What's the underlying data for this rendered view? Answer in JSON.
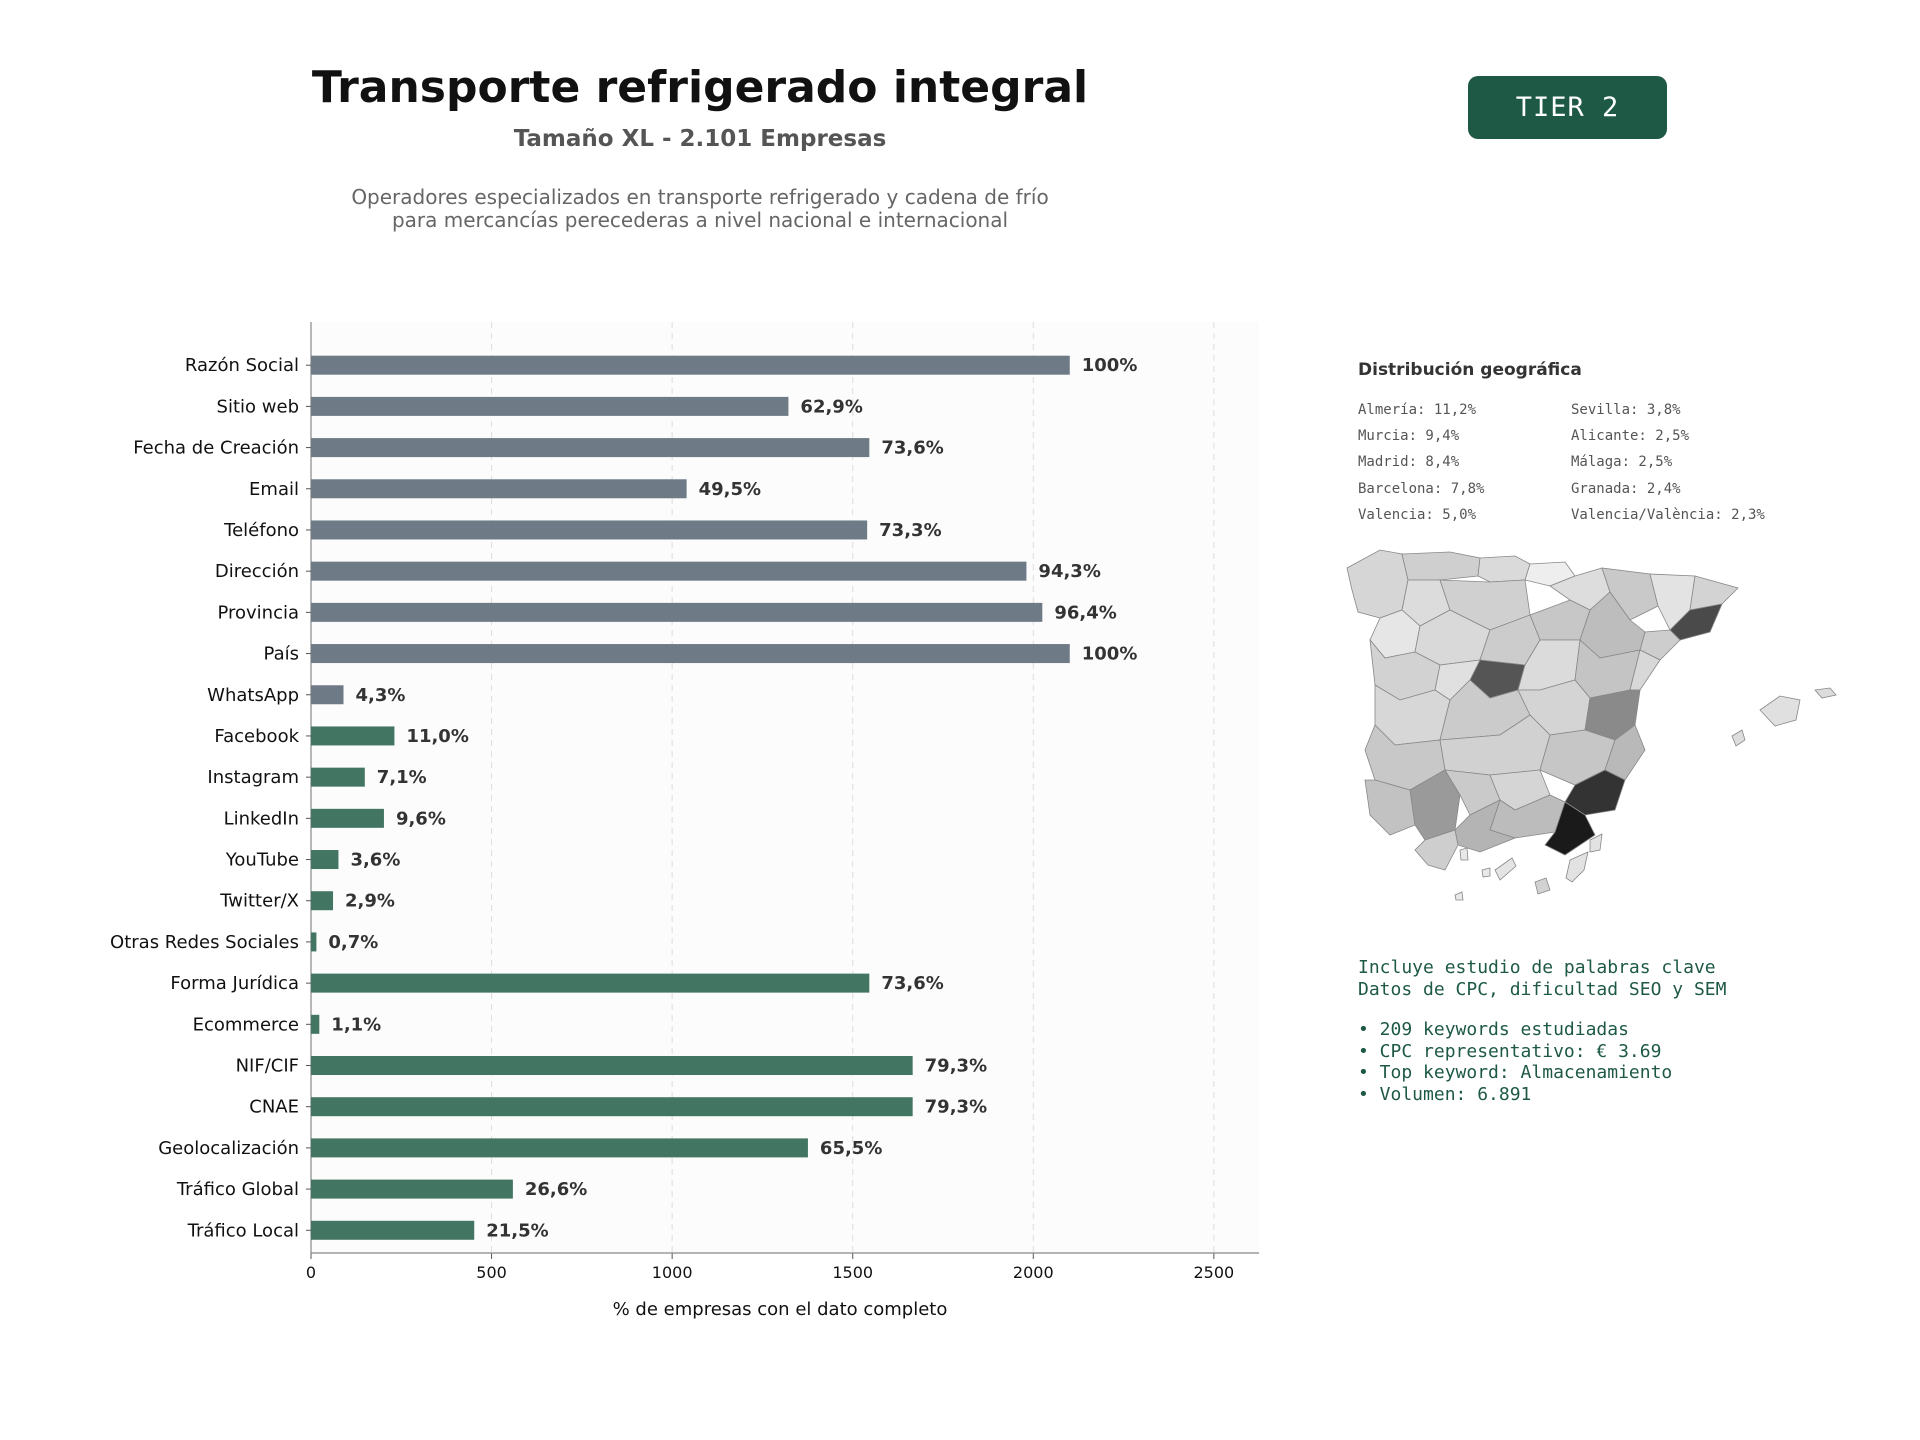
{
  "header": {
    "title": "Transporte refrigerado integral",
    "subtitle": "Tamaño XL - 2.101 Empresas",
    "description_line1": "Operadores especializados en transporte refrigerado y cadena de frío",
    "description_line2": "para mercancías perecederas a nivel nacional e internacional",
    "tier_badge": "TIER 2"
  },
  "colors": {
    "gray_bar": "#6e7a85",
    "green_bar": "#437563",
    "badge": "#1e5945",
    "keyword_text": "#1e5945"
  },
  "chart_data": {
    "type": "bar",
    "orientation": "horizontal",
    "categories": [
      "Razón Social",
      "Sitio web",
      "Fecha de Creación",
      "Email",
      "Teléfono",
      "Dirección",
      "Provincia",
      "País",
      "WhatsApp",
      "Facebook",
      "Instagram",
      "LinkedIn",
      "YouTube",
      "Twitter/X",
      "Otras Redes Sociales",
      "Forma Jurídica",
      "Ecommerce",
      "NIF/CIF",
      "CNAE",
      "Geolocalización",
      "Tráfico Global",
      "Tráfico Local"
    ],
    "values": [
      2101,
      1322,
      1546,
      1040,
      1540,
      1981,
      2025,
      2101,
      90,
      231,
      149,
      202,
      76,
      61,
      15,
      1546,
      23,
      1666,
      1666,
      1376,
      559,
      452
    ],
    "labels": [
      "100%",
      "62,9%",
      "73,6%",
      "49,5%",
      "73,3%",
      "94,3%",
      "96,4%",
      "100%",
      "4,3%",
      "11,0%",
      "7,1%",
      "9,6%",
      "3,6%",
      "2,9%",
      "0,7%",
      "73,6%",
      "1,1%",
      "79,3%",
      "79,3%",
      "65,5%",
      "26,6%",
      "21,5%"
    ],
    "bar_colors": [
      "gray",
      "gray",
      "gray",
      "gray",
      "gray",
      "gray",
      "gray",
      "gray",
      "gray",
      "green",
      "green",
      "green",
      "green",
      "green",
      "green",
      "green",
      "green",
      "green",
      "green",
      "green",
      "green",
      "green"
    ],
    "xlabel": "% de empresas con el dato completo",
    "xlim": [
      0,
      2625
    ],
    "xticks": [
      0,
      500,
      1000,
      1500,
      2000,
      2500
    ],
    "grid": "vertical dashed"
  },
  "geo": {
    "title": "Distribución geográfica",
    "col1": [
      "Almería: 11,2%",
      "Murcia: 9,4%",
      "Madrid: 8,4%",
      "Barcelona: 7,8%",
      "Valencia: 5,0%"
    ],
    "col2": [
      "Sevilla: 3,8%",
      "Alicante: 2,5%",
      "Málaga: 2,5%",
      "Granada: 2,4%",
      "Valencia/València: 2,3%"
    ]
  },
  "keywords": {
    "line1": "Incluye estudio de palabras clave",
    "line2": "Datos de CPC, dificultad SEO y SEM",
    "bullets": [
      "• 209 keywords estudiadas",
      "• CPC representativo: € 3.69",
      "• Top keyword: Almacenamiento",
      "• Volumen: 6.891"
    ]
  }
}
